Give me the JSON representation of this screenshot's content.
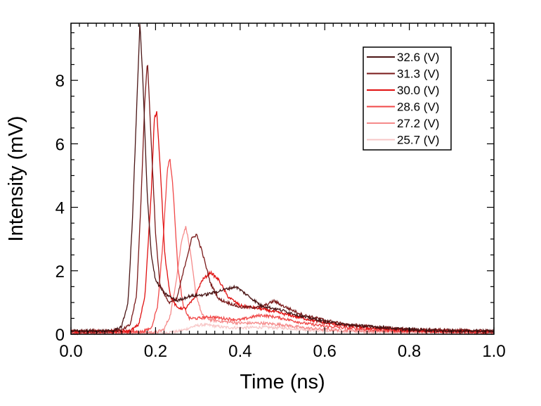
{
  "chart_data": {
    "type": "line",
    "xlabel": "Time (ns)",
    "ylabel": "Intensity (mV)",
    "xlim": [
      0.0,
      1.0
    ],
    "ylim": [
      0,
      9.8
    ],
    "x_ticks": [
      "0.0",
      "0.2",
      "0.4",
      "0.6",
      "0.8",
      "1.0"
    ],
    "y_ticks": [
      "0",
      "2",
      "4",
      "6",
      "8"
    ],
    "grid": false,
    "legend_position": "top-right",
    "series": [
      {
        "name": "32.6 (V)",
        "color": "#4a1515",
        "points": [
          [
            0.0,
            0.1
          ],
          [
            0.1,
            0.1
          ],
          [
            0.12,
            0.25
          ],
          [
            0.135,
            1.0
          ],
          [
            0.145,
            3.5
          ],
          [
            0.155,
            7.0
          ],
          [
            0.163,
            9.8
          ],
          [
            0.17,
            8.0
          ],
          [
            0.18,
            4.5
          ],
          [
            0.19,
            2.5
          ],
          [
            0.2,
            1.7
          ],
          [
            0.22,
            1.3
          ],
          [
            0.25,
            1.05
          ],
          [
            0.28,
            1.2
          ],
          [
            0.32,
            1.25
          ],
          [
            0.36,
            1.4
          ],
          [
            0.39,
            1.5
          ],
          [
            0.42,
            1.2
          ],
          [
            0.45,
            0.9
          ],
          [
            0.5,
            0.75
          ],
          [
            0.55,
            0.55
          ],
          [
            0.6,
            0.4
          ],
          [
            0.65,
            0.3
          ],
          [
            0.7,
            0.25
          ],
          [
            0.75,
            0.2
          ],
          [
            0.8,
            0.15
          ],
          [
            0.9,
            0.1
          ],
          [
            1.0,
            0.1
          ]
        ]
      },
      {
        "name": "31.3 (V)",
        "color": "#7a1a1a",
        "points": [
          [
            0.0,
            0.1
          ],
          [
            0.12,
            0.12
          ],
          [
            0.14,
            0.3
          ],
          [
            0.155,
            1.2
          ],
          [
            0.165,
            4.0
          ],
          [
            0.175,
            7.5
          ],
          [
            0.181,
            8.6
          ],
          [
            0.19,
            6.0
          ],
          [
            0.2,
            3.2
          ],
          [
            0.21,
            1.6
          ],
          [
            0.23,
            1.0
          ],
          [
            0.25,
            1.1
          ],
          [
            0.27,
            2.2
          ],
          [
            0.285,
            3.0
          ],
          [
            0.297,
            3.15
          ],
          [
            0.31,
            2.6
          ],
          [
            0.33,
            1.6
          ],
          [
            0.35,
            1.1
          ],
          [
            0.4,
            0.85
          ],
          [
            0.45,
            0.85
          ],
          [
            0.48,
            1.05
          ],
          [
            0.5,
            0.9
          ],
          [
            0.55,
            0.6
          ],
          [
            0.6,
            0.45
          ],
          [
            0.65,
            0.3
          ],
          [
            0.7,
            0.25
          ],
          [
            0.8,
            0.15
          ],
          [
            1.0,
            0.1
          ]
        ]
      },
      {
        "name": "30.0 (V)",
        "color": "#e01010",
        "points": [
          [
            0.0,
            0.08
          ],
          [
            0.14,
            0.1
          ],
          [
            0.16,
            0.3
          ],
          [
            0.175,
            1.2
          ],
          [
            0.19,
            4.5
          ],
          [
            0.197,
            6.8
          ],
          [
            0.203,
            7.0
          ],
          [
            0.212,
            5.0
          ],
          [
            0.222,
            2.5
          ],
          [
            0.235,
            1.2
          ],
          [
            0.25,
            0.85
          ],
          [
            0.27,
            0.8
          ],
          [
            0.29,
            1.1
          ],
          [
            0.31,
            1.7
          ],
          [
            0.33,
            1.95
          ],
          [
            0.35,
            1.7
          ],
          [
            0.37,
            1.2
          ],
          [
            0.4,
            0.9
          ],
          [
            0.45,
            0.8
          ],
          [
            0.5,
            0.65
          ],
          [
            0.55,
            0.5
          ],
          [
            0.6,
            0.35
          ],
          [
            0.7,
            0.2
          ],
          [
            0.8,
            0.12
          ],
          [
            1.0,
            0.08
          ]
        ]
      },
      {
        "name": "28.6 (V)",
        "color": "#f04848",
        "points": [
          [
            0.0,
            0.05
          ],
          [
            0.17,
            0.08
          ],
          [
            0.19,
            0.2
          ],
          [
            0.205,
            0.9
          ],
          [
            0.218,
            3.0
          ],
          [
            0.228,
            5.2
          ],
          [
            0.234,
            5.55
          ],
          [
            0.242,
            4.5
          ],
          [
            0.252,
            2.2
          ],
          [
            0.265,
            0.9
          ],
          [
            0.28,
            0.5
          ],
          [
            0.3,
            0.5
          ],
          [
            0.33,
            0.55
          ],
          [
            0.36,
            0.5
          ],
          [
            0.4,
            0.45
          ],
          [
            0.43,
            0.55
          ],
          [
            0.45,
            0.6
          ],
          [
            0.48,
            0.55
          ],
          [
            0.5,
            0.5
          ],
          [
            0.55,
            0.35
          ],
          [
            0.6,
            0.25
          ],
          [
            0.7,
            0.15
          ],
          [
            0.8,
            0.1
          ],
          [
            1.0,
            0.05
          ]
        ]
      },
      {
        "name": "27.2 (V)",
        "color": "#f58a8a",
        "points": [
          [
            0.0,
            0.05
          ],
          [
            0.2,
            0.06
          ],
          [
            0.22,
            0.15
          ],
          [
            0.235,
            0.6
          ],
          [
            0.25,
            1.8
          ],
          [
            0.262,
            3.0
          ],
          [
            0.272,
            3.4
          ],
          [
            0.282,
            2.6
          ],
          [
            0.295,
            1.3
          ],
          [
            0.31,
            0.6
          ],
          [
            0.33,
            0.45
          ],
          [
            0.36,
            0.4
          ],
          [
            0.4,
            0.35
          ],
          [
            0.45,
            0.35
          ],
          [
            0.5,
            0.3
          ],
          [
            0.55,
            0.2
          ],
          [
            0.6,
            0.15
          ],
          [
            0.7,
            0.1
          ],
          [
            1.0,
            0.05
          ]
        ]
      },
      {
        "name": "25.7 (V)",
        "color": "#f7c7c7",
        "points": [
          [
            0.0,
            0.04
          ],
          [
            0.22,
            0.05
          ],
          [
            0.25,
            0.08
          ],
          [
            0.27,
            0.15
          ],
          [
            0.29,
            0.25
          ],
          [
            0.31,
            0.3
          ],
          [
            0.33,
            0.28
          ],
          [
            0.36,
            0.22
          ],
          [
            0.4,
            0.2
          ],
          [
            0.45,
            0.22
          ],
          [
            0.5,
            0.2
          ],
          [
            0.55,
            0.15
          ],
          [
            0.6,
            0.1
          ],
          [
            0.7,
            0.07
          ],
          [
            1.0,
            0.04
          ]
        ]
      }
    ]
  }
}
